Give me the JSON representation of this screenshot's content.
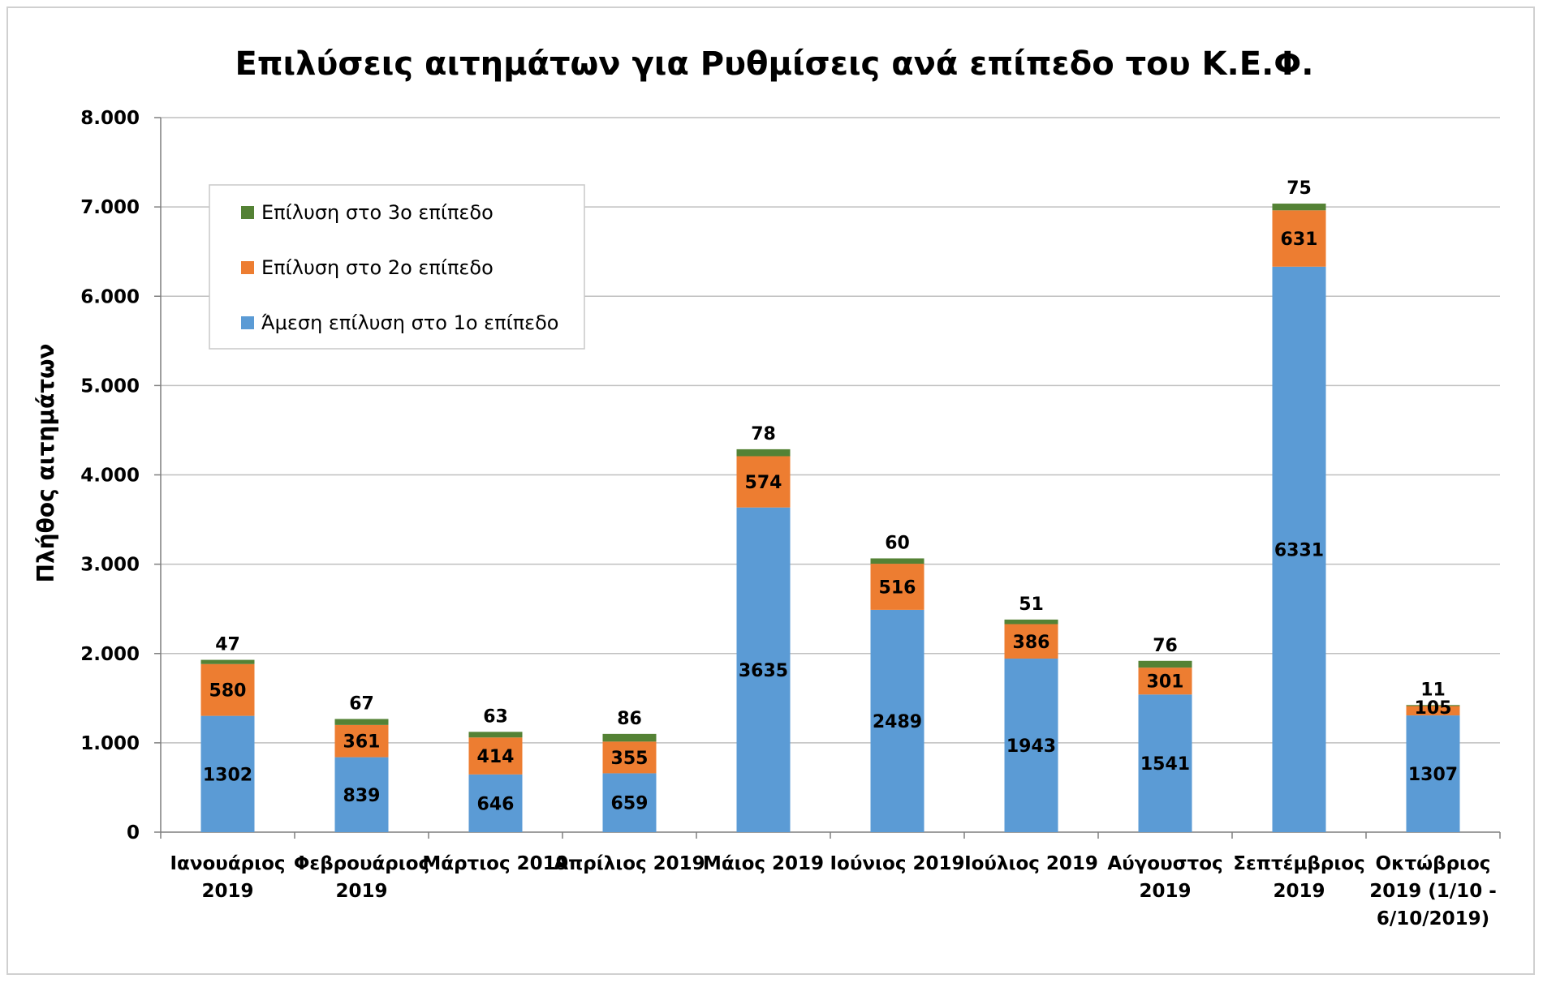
{
  "chart_data": {
    "type": "bar",
    "stacked": true,
    "title": "Επιλύσεις αιτημάτων για Ρυθμίσεις ανά επίπεδο του Κ.Ε.Φ.",
    "ylabel": "Πλήθος αιτημάτων",
    "xlabel": "",
    "ylim": [
      0,
      8000
    ],
    "yticks": [
      0,
      1000,
      2000,
      3000,
      4000,
      5000,
      6000,
      7000,
      8000
    ],
    "ytick_labels": [
      "0",
      "1.000",
      "2.000",
      "3.000",
      "4.000",
      "5.000",
      "6.000",
      "7.000",
      "8.000"
    ],
    "grid": true,
    "legend_position": "top-left",
    "categories": [
      [
        "Ιανουάριος",
        "2019"
      ],
      [
        "Φεβρουάριος",
        "2019"
      ],
      [
        "Μάρτιος 2019"
      ],
      [
        "Απρίλιος 2019"
      ],
      [
        "Μάιος 2019"
      ],
      [
        "Ιούνιος 2019"
      ],
      [
        "Ιούλιος 2019"
      ],
      [
        "Αύγουστος",
        "2019"
      ],
      [
        "Σεπτέμβριος",
        "2019"
      ],
      [
        "Οκτώβριος",
        "2019 (1/10 -",
        "6/10/2019)"
      ]
    ],
    "series": [
      {
        "name": "Άμεση επίλυση στο 1ο επίπεδο",
        "color": "#5b9bd5",
        "values": [
          1302,
          839,
          646,
          659,
          3635,
          2489,
          1943,
          1541,
          6331,
          1307
        ]
      },
      {
        "name": "Επίλυση στο 2ο επίπεδο",
        "color": "#ed7d31",
        "values": [
          580,
          361,
          414,
          355,
          574,
          516,
          386,
          301,
          631,
          105
        ]
      },
      {
        "name": "Επίλυση στο 3ο επίπεδο",
        "color": "#548235",
        "values": [
          47,
          67,
          63,
          86,
          78,
          60,
          51,
          76,
          75,
          11
        ]
      }
    ],
    "legend_order": [
      2,
      1,
      0
    ]
  }
}
